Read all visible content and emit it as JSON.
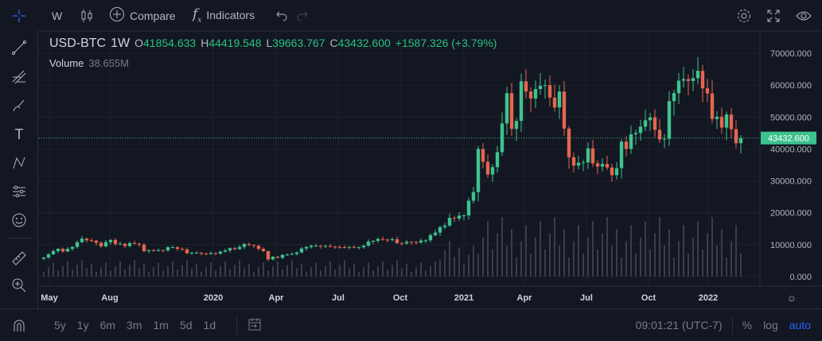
{
  "toolbar": {
    "interval": "W",
    "compare": "Compare",
    "indicators": "Indicators"
  },
  "legend": {
    "symbol": "USD-BTC",
    "interval": "1W",
    "o_label": "O",
    "o": "41854.633",
    "h_label": "H",
    "h": "44419.548",
    "l_label": "L",
    "l": "39663.767",
    "c_label": "C",
    "c": "43432.600",
    "change": "+1587.326 (+3.79%)"
  },
  "volume": {
    "label": "Volume",
    "value": "38.655M"
  },
  "bottom": {
    "ranges": [
      "5y",
      "1y",
      "6m",
      "3m",
      "1m",
      "5d",
      "1d"
    ],
    "time": "09:01:21 (UTC-7)",
    "percent": "%",
    "log": "log",
    "auto": "auto"
  },
  "colors": {
    "up": "#3ec28f",
    "down": "#e4664f",
    "accent": "#2962ff"
  },
  "chart_data": {
    "type": "candlestick",
    "title": "USD-BTC 1W",
    "ylim": [
      0,
      70000
    ],
    "y_ticks": [
      "70000.000",
      "60000.000",
      "50000.000",
      "40000.000",
      "30000.000",
      "20000.000",
      "10000.000",
      "0.000"
    ],
    "x_ticks": [
      "May",
      "Aug",
      "2020",
      "Apr",
      "Jul",
      "Oct",
      "2021",
      "Apr",
      "Jul",
      "Oct",
      "2022"
    ],
    "last_price": "43432.600",
    "weekly_close_k": [
      6.0,
      7.0,
      8.0,
      8.7,
      7.9,
      8.7,
      9.3,
      10.8,
      11.9,
      11.4,
      11.3,
      10.6,
      9.5,
      10.8,
      11.5,
      10.2,
      10.3,
      9.6,
      10.5,
      10.3,
      10.0,
      8.0,
      8.3,
      8.2,
      8.3,
      8.2,
      9.2,
      9.2,
      8.7,
      8.5,
      7.3,
      7.5,
      7.5,
      7.2,
      7.1,
      7.4,
      7.2,
      7.8,
      8.2,
      8.9,
      8.6,
      9.3,
      10.2,
      9.9,
      9.7,
      8.7,
      8.0,
      5.4,
      6.2,
      5.9,
      6.8,
      6.9,
      7.1,
      7.6,
      8.8,
      9.3,
      9.7,
      9.7,
      9.5,
      9.6,
      9.4,
      9.3,
      9.2,
      9.1,
      9.3,
      9.2,
      9.2,
      9.7,
      11.0,
      11.2,
      11.8,
      11.6,
      11.5,
      11.7,
      10.5,
      10.4,
      10.9,
      10.8,
      10.7,
      11.3,
      11.4,
      13.0,
      13.8,
      15.5,
      16.0,
      18.4,
      18.2,
      19.1,
      19.2,
      23.8,
      26.5,
      40.0,
      36.0,
      32.0,
      34.3,
      39.0,
      48.0,
      57.5,
      46.3,
      48.8,
      61.2,
      58.0,
      55.8,
      58.8,
      59.8,
      60.0,
      56.1,
      53.0,
      58.0,
      46.4,
      37.4,
      34.8,
      35.7,
      35.8,
      40.2,
      35.5,
      34.5,
      35.3,
      34.2,
      31.8,
      34.0,
      42.3,
      40.0,
      44.6,
      45.0,
      47.0,
      49.0,
      49.9,
      46.0,
      43.0,
      43.2,
      55.0,
      57.5,
      61.4,
      61.9,
      61.3,
      62.2,
      64.5,
      59.0,
      57.4,
      49.4,
      50.1,
      46.7,
      50.8,
      46.2,
      41.8,
      43.4
    ],
    "first_open_k": 5.6
  }
}
